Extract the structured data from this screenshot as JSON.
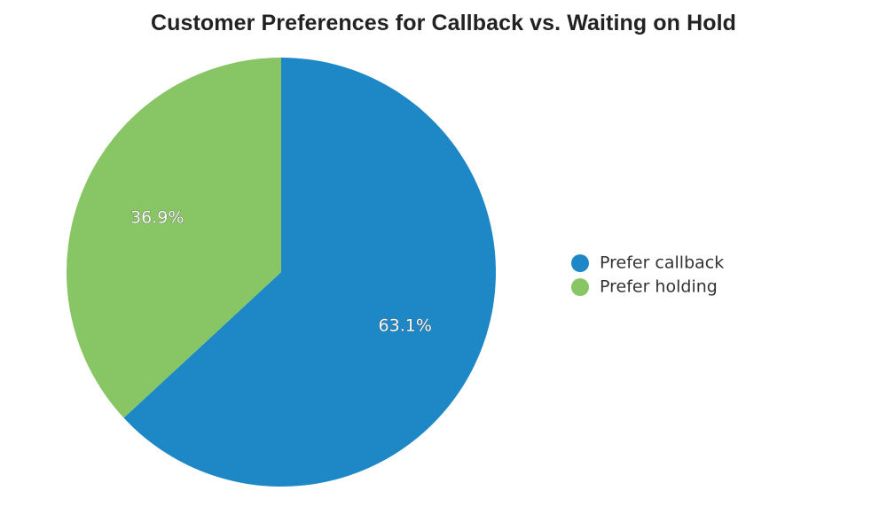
{
  "chart_data": {
    "type": "pie",
    "title": "Customer Preferences for Callback vs. Waiting on Hold",
    "categories": [
      "Prefer callback",
      "Prefer holding"
    ],
    "values": [
      63.1,
      36.9
    ],
    "labels": [
      "63.1%",
      "36.9%"
    ],
    "colors": [
      "#1e88c7",
      "#88c665"
    ],
    "start_angle": "12 o'clock",
    "direction": "clockwise",
    "legend_position": "right"
  }
}
